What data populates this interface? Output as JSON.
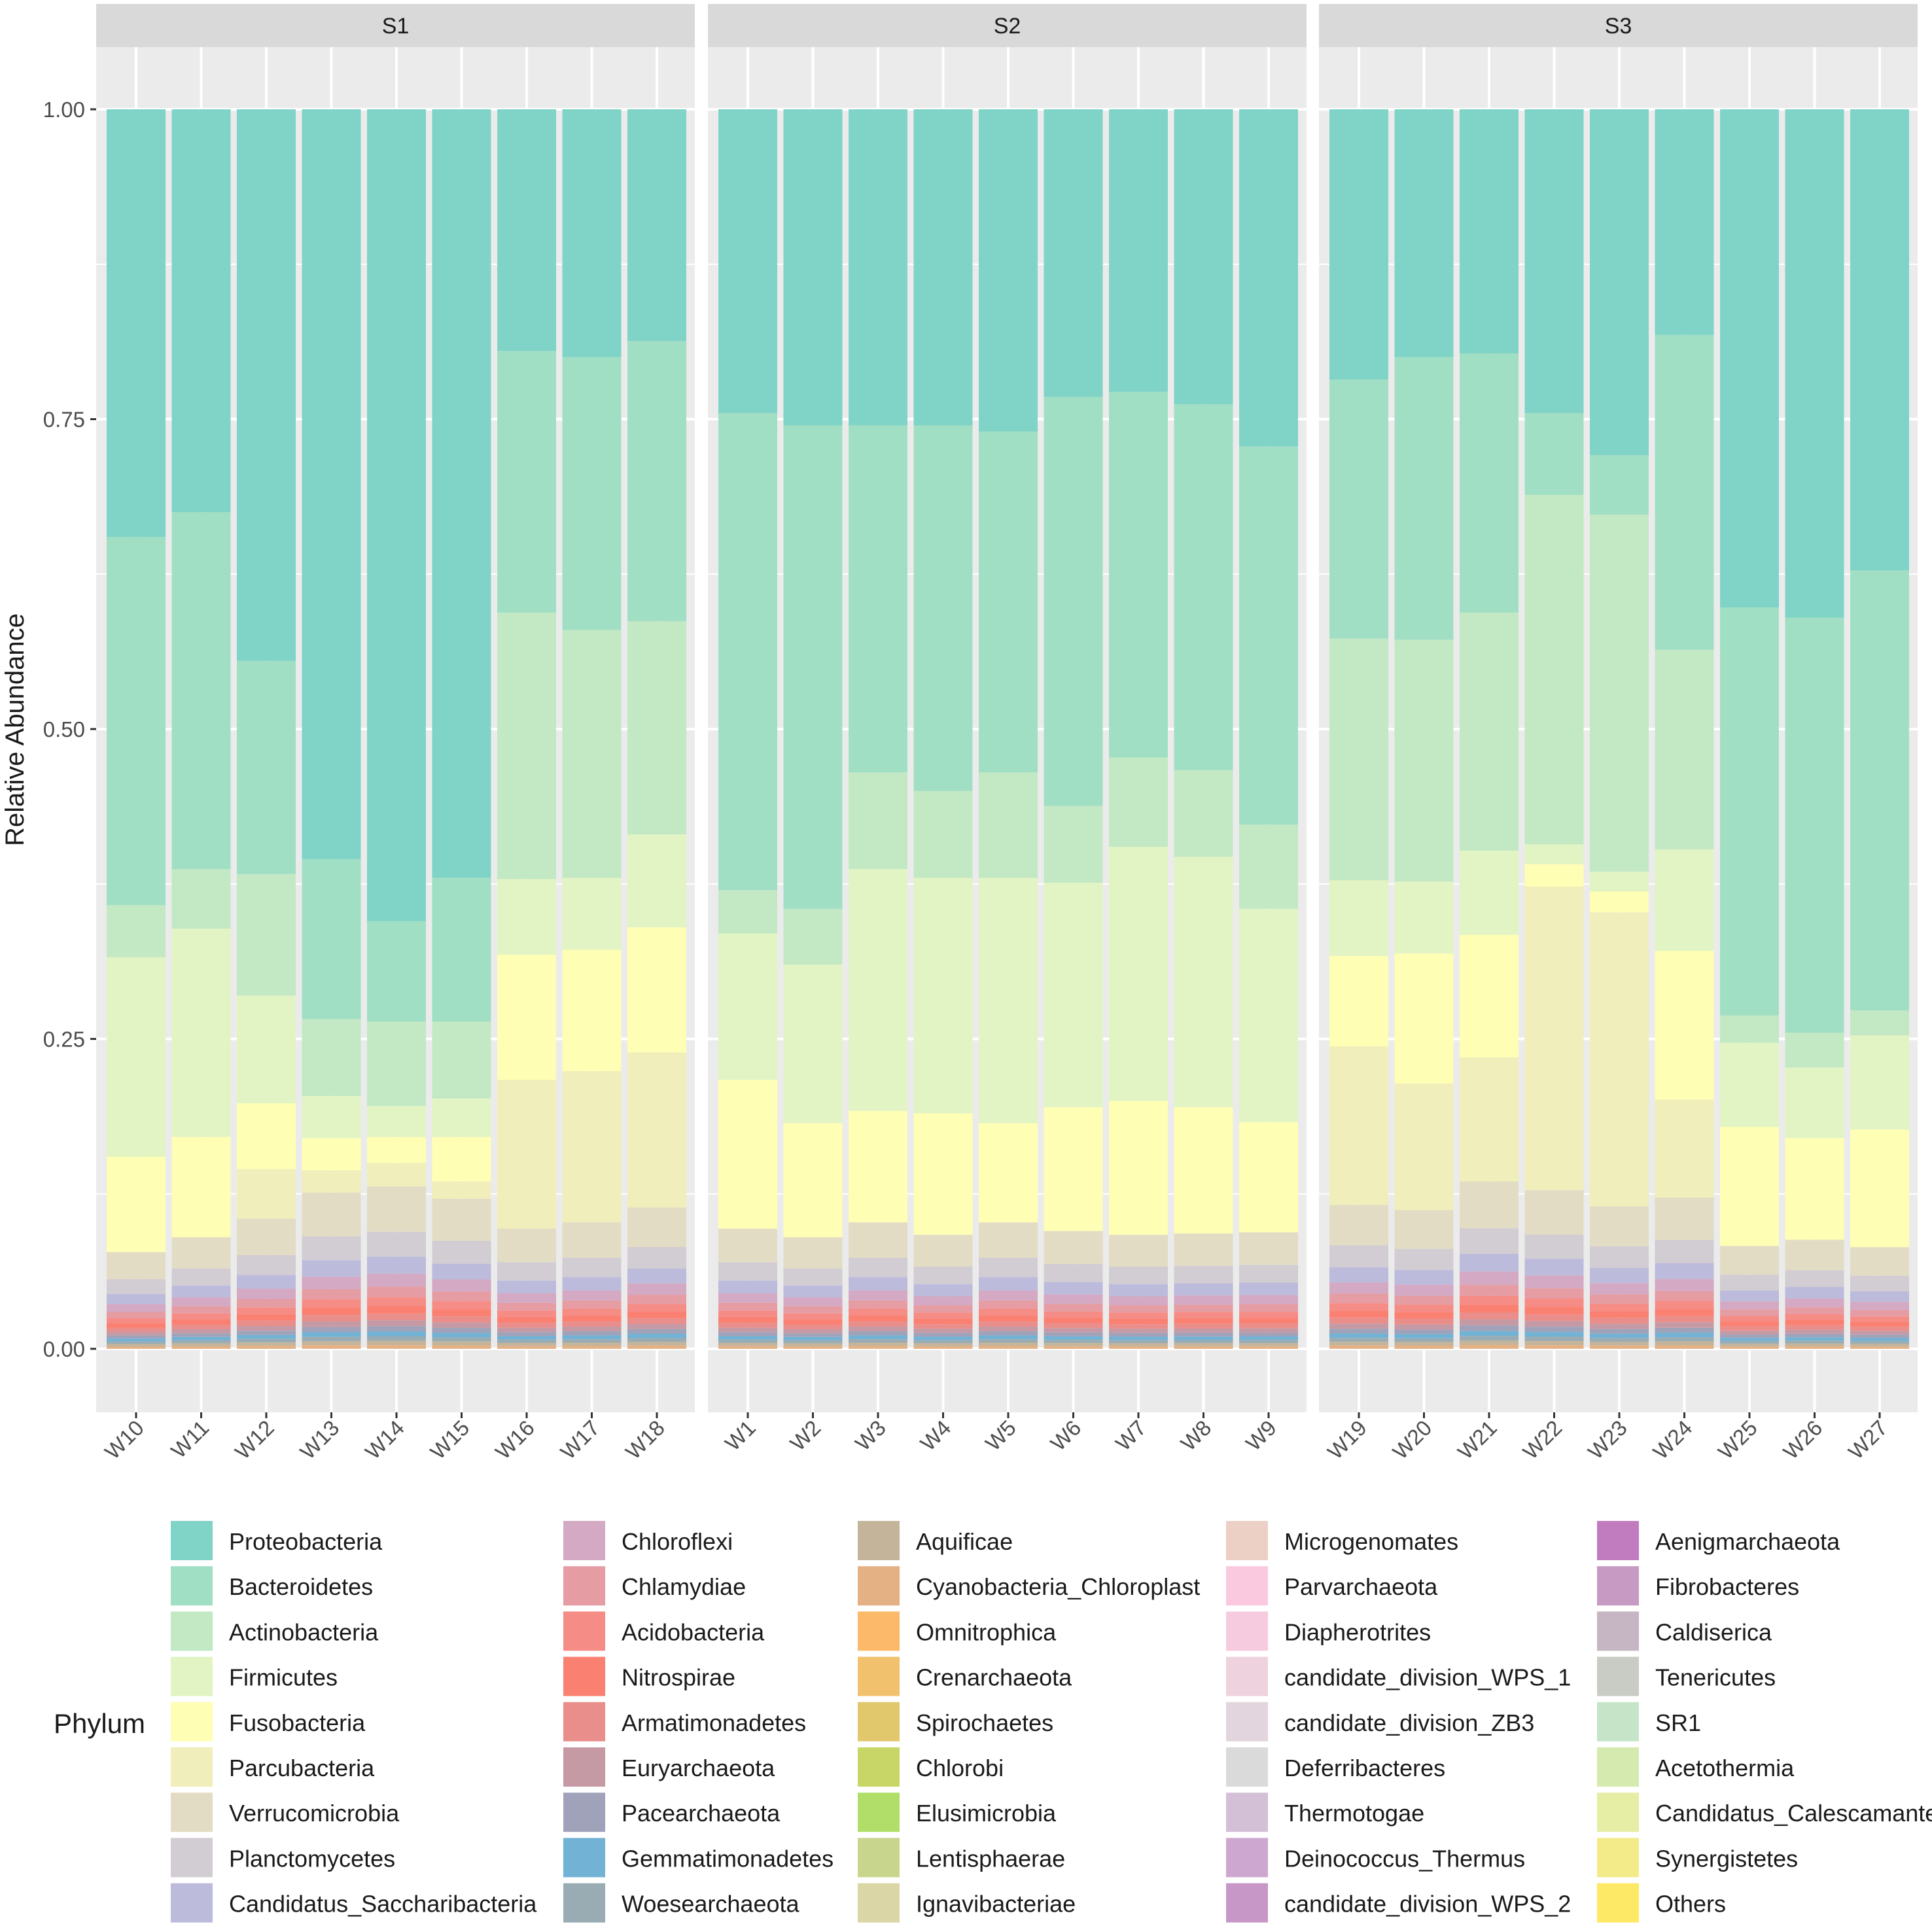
{
  "chart_data": {
    "type": "bar",
    "subtype": "stacked-100-percent-faceted",
    "ylabel": "Relative Abundance",
    "xlabel": "",
    "ylim": [
      0,
      1
    ],
    "yticks": [
      "0.00",
      "0.25",
      "0.50",
      "0.75",
      "1.00"
    ],
    "legend_title": "Phylum",
    "legend_position": "bottom",
    "stack_note": "Values are segment sizes from the bottom of the stack upward, in legend order; only the top six phyla are listed, the remainder is shown as a thin multi-coloured band of minor phyla.",
    "phyla": [
      "Proteobacteria",
      "Bacteroidetes",
      "Actinobacteria",
      "Firmicutes",
      "Fusobacteria",
      "Parcubacteria",
      "Verrucomicrobia",
      "Planctomycetes",
      "Candidatus_Saccharibacteria",
      "Chloroflexi",
      "Chlamydiae",
      "Acidobacteria",
      "Nitrospirae",
      "Armatimonadetes",
      "Euryarchaeota",
      "Pacearchaeota",
      "Gemmatimonadetes",
      "Woesearchaeota",
      "Aquificae",
      "Cyanobacteria_Chloroplast",
      "Omnitrophica",
      "Crenarchaeota",
      "Spirochaetes",
      "Chlorobi",
      "Elusimicrobia",
      "Lentisphaerae",
      "Ignavibacteriae",
      "Microgenomates",
      "Parvarchaeota",
      "Diapherotrites",
      "candidate_division_WPS_1",
      "candidate_division_ZB3",
      "Deferribacteres",
      "Thermotogae",
      "Deinococcus_Thermus",
      "candidate_division_WPS_2",
      "Aenigmarchaeota",
      "Fibrobacteres",
      "Caldiserica",
      "Tenericutes",
      "SR1",
      "Acetothermia",
      "Candidatus_Calescamantes",
      "Synergistetes",
      "Others"
    ],
    "colors": [
      "#7fd3c7",
      "#a1dfc5",
      "#c2e8c4",
      "#e2f4c4",
      "#fefeb4",
      "#f0eebb",
      "#e2dcc5",
      "#d2ccd3",
      "#bcbbdc",
      "#d3a9c3",
      "#e59ca3",
      "#f68c86",
      "#fa8071",
      "#e98e8a",
      "#c69aa5",
      "#a0a2b9",
      "#72b2d4",
      "#99acb3",
      "#c4b49a",
      "#e4b185",
      "#fbb969",
      "#f2c16e",
      "#e2c86d",
      "#c8d667",
      "#b0de68",
      "#c8d58d",
      "#dad6a6",
      "#ecd0c6",
      "#fac9e0",
      "#f6cbdf",
      "#eed2de",
      "#e3d5dd",
      "#dadada",
      "#d4c0d6",
      "#cda7d0",
      "#c797c8",
      "#c07cbe",
      "#c69ac2",
      "#c6b5c2",
      "#c9ccc5",
      "#c6e5c8",
      "#d5eaae",
      "#e6eda5",
      "#f3eb89",
      "#fde965"
    ],
    "facets": [
      {
        "name": "S1",
        "samples": [
          "W10",
          "W11",
          "W12",
          "W13",
          "W14",
          "W15",
          "W16",
          "W17",
          "W18"
        ],
        "series": [
          {
            "name": "Proteobacteria",
            "values": [
              0.345,
              0.325,
              0.445,
              0.605,
              0.655,
              0.62,
              0.195,
              0.2,
              0.187
            ]
          },
          {
            "name": "Bacteroidetes",
            "values": [
              0.297,
              0.288,
              0.172,
              0.129,
              0.081,
              0.116,
              0.211,
              0.22,
              0.226
            ]
          },
          {
            "name": "Actinobacteria",
            "values": [
              0.042,
              0.048,
              0.098,
              0.062,
              0.068,
              0.062,
              0.215,
              0.2,
              0.172
            ]
          },
          {
            "name": "Firmicutes",
            "values": [
              0.161,
              0.168,
              0.087,
              0.034,
              0.025,
              0.031,
              0.061,
              0.058,
              0.075
            ]
          },
          {
            "name": "Fusobacteria",
            "values": [
              0.077,
              0.081,
              0.053,
              0.026,
              0.021,
              0.036,
              0.101,
              0.098,
              0.101
            ]
          },
          {
            "name": "Parcubacteria",
            "values": [
              0.0,
              0.0,
              0.04,
              0.018,
              0.019,
              0.014,
              0.12,
              0.122,
              0.125
            ]
          }
        ]
      },
      {
        "name": "S2",
        "samples": [
          "W1",
          "W2",
          "W3",
          "W4",
          "W5",
          "W6",
          "W7",
          "W8",
          "W9"
        ],
        "series": [
          {
            "name": "Proteobacteria",
            "values": [
              0.245,
              0.255,
              0.255,
              0.255,
              0.26,
              0.232,
              0.228,
              0.238,
              0.272
            ]
          },
          {
            "name": "Bacteroidetes",
            "values": [
              0.385,
              0.39,
              0.28,
              0.295,
              0.275,
              0.33,
              0.295,
              0.295,
              0.305
            ]
          },
          {
            "name": "Actinobacteria",
            "values": [
              0.035,
              0.045,
              0.078,
              0.07,
              0.085,
              0.062,
              0.072,
              0.07,
              0.068
            ]
          },
          {
            "name": "Firmicutes",
            "values": [
              0.118,
              0.128,
              0.195,
              0.19,
              0.198,
              0.181,
              0.205,
              0.202,
              0.172
            ]
          },
          {
            "name": "Fusobacteria",
            "values": [
              0.12,
              0.092,
              0.09,
              0.098,
              0.08,
              0.1,
              0.108,
              0.102,
              0.089
            ]
          },
          {
            "name": "Parcubacteria",
            "values": [
              0.0,
              0.0,
              0.0,
              0.0,
              0.0,
              0.0,
              0.0,
              0.0,
              0.0
            ]
          }
        ]
      },
      {
        "name": "S3",
        "samples": [
          "W19",
          "W20",
          "W21",
          "W22",
          "W23",
          "W24",
          "W25",
          "W26",
          "W27"
        ],
        "series": [
          {
            "name": "Proteobacteria",
            "values": [
              0.218,
              0.2,
              0.197,
              0.245,
              0.279,
              0.182,
              0.402,
              0.41,
              0.372
            ]
          },
          {
            "name": "Bacteroidetes",
            "values": [
              0.209,
              0.228,
              0.209,
              0.066,
              0.048,
              0.254,
              0.329,
              0.335,
              0.355
            ]
          },
          {
            "name": "Actinobacteria",
            "values": [
              0.195,
              0.195,
              0.192,
              0.282,
              0.288,
              0.161,
              0.022,
              0.028,
              0.02
            ]
          },
          {
            "name": "Firmicutes",
            "values": [
              0.061,
              0.058,
              0.068,
              0.016,
              0.016,
              0.082,
              0.068,
              0.057,
              0.076
            ]
          },
          {
            "name": "Fusobacteria",
            "values": [
              0.073,
              0.105,
              0.099,
              0.018,
              0.017,
              0.12,
              0.096,
              0.082,
              0.095
            ]
          },
          {
            "name": "Parcubacteria",
            "values": [
              0.128,
              0.102,
              0.1,
              0.245,
              0.237,
              0.079,
              0.0,
              0.0,
              0.0
            ]
          }
        ]
      }
    ]
  }
}
